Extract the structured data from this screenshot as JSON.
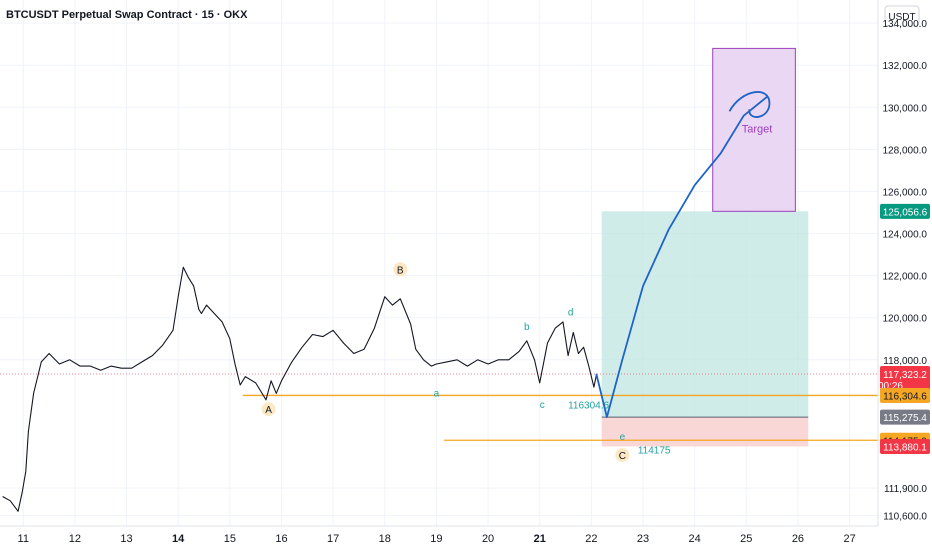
{
  "header": {
    "title": "BTCUSDT Perpetual Swap Contract · 15 · OKX",
    "currency": "USDT"
  },
  "colors": {
    "price_line": "#131722",
    "level_line": "#f5a623",
    "projection": "#1e63c8",
    "profit_zone": "#bfe6e1",
    "loss_zone": "#f9d0d0",
    "target_box": "#ead7f3",
    "target_border": "#9c3fbd",
    "wave_labels": "#22a39f",
    "wave_major_bg": "#fde8c4"
  },
  "chart_data": {
    "type": "line",
    "series": [
      {
        "x": [
          10.6,
          10.75,
          10.9,
          10.98,
          11.05,
          11.1,
          11.2,
          11.35,
          11.5,
          11.7,
          11.9,
          12.1,
          12.3,
          12.5,
          12.7,
          12.9,
          13.1,
          13.3,
          13.5,
          13.7,
          13.9,
          14.0,
          14.1,
          14.2,
          14.3,
          14.4,
          14.45,
          14.55,
          14.7,
          14.85,
          15.0,
          15.1,
          15.2,
          15.3,
          15.5,
          15.7,
          15.8,
          15.9,
          16.0,
          16.2,
          16.4,
          16.6,
          16.8,
          17.0,
          17.2,
          17.4,
          17.6,
          17.8,
          18.0,
          18.15,
          18.3,
          18.5,
          18.6,
          18.75,
          18.9,
          19.0,
          19.2,
          19.4,
          19.6,
          19.8,
          20.0,
          20.2,
          20.4,
          20.6,
          20.75,
          20.9,
          21.0,
          21.15,
          21.3,
          21.45,
          21.55,
          21.65,
          21.75,
          21.85,
          21.95,
          22.05,
          22.1
        ],
        "y": [
          111500,
          111300,
          110800,
          111700,
          112700,
          114600,
          116400,
          117900,
          118300,
          117800,
          118000,
          117700,
          117700,
          117500,
          117700,
          117600,
          117600,
          117900,
          118200,
          118700,
          119400,
          121000,
          122400,
          121900,
          121500,
          120400,
          120200,
          120600,
          120200,
          119800,
          119000,
          117800,
          116800,
          117200,
          116900,
          116100,
          117000,
          116400,
          117000,
          117900,
          118600,
          119200,
          119100,
          119400,
          118800,
          118300,
          118500,
          119500,
          121000,
          120600,
          120900,
          119700,
          118500,
          118000,
          117700,
          117800,
          117900,
          118000,
          117700,
          118000,
          117800,
          118000,
          118000,
          118400,
          118900,
          118000,
          116900,
          118800,
          119500,
          119800,
          118200,
          119300,
          118300,
          118600,
          117700,
          116700,
          117300
        ]
      }
    ],
    "projection": {
      "x": [
        22.1,
        22.3,
        22.6,
        23.0,
        23.5,
        24.0,
        24.5,
        24.95,
        25.4
      ],
      "y": [
        117300,
        115275,
        118000,
        121500,
        124200,
        126300,
        127800,
        129600,
        130500
      ]
    },
    "x_ticks": [
      {
        "v": 11,
        "label": "11",
        "bold": false
      },
      {
        "v": 12,
        "label": "12",
        "bold": false
      },
      {
        "v": 13,
        "label": "13",
        "bold": false
      },
      {
        "v": 14,
        "label": "14",
        "bold": true
      },
      {
        "v": 15,
        "label": "15",
        "bold": false
      },
      {
        "v": 16,
        "label": "16",
        "bold": false
      },
      {
        "v": 17,
        "label": "17",
        "bold": false
      },
      {
        "v": 18,
        "label": "18",
        "bold": false
      },
      {
        "v": 19,
        "label": "19",
        "bold": false
      },
      {
        "v": 20,
        "label": "20",
        "bold": false
      },
      {
        "v": 21,
        "label": "21",
        "bold": true
      },
      {
        "v": 22,
        "label": "22",
        "bold": false
      },
      {
        "v": 23,
        "label": "23",
        "bold": false
      },
      {
        "v": 24,
        "label": "24",
        "bold": false
      },
      {
        "v": 25,
        "label": "25",
        "bold": false
      },
      {
        "v": 26,
        "label": "26",
        "bold": false
      },
      {
        "v": 27,
        "label": "27",
        "bold": false
      }
    ],
    "y_ticks": [
      {
        "v": 134000,
        "label": "134,000.0"
      },
      {
        "v": 132000,
        "label": "132,000.0"
      },
      {
        "v": 130000,
        "label": "130,000.0"
      },
      {
        "v": 128000,
        "label": "128,000.0"
      },
      {
        "v": 126000,
        "label": "126,000.0"
      },
      {
        "v": 124000,
        "label": "124,000.0"
      },
      {
        "v": 122000,
        "label": "122,000.0"
      },
      {
        "v": 120000,
        "label": "120,000.0"
      },
      {
        "v": 118000,
        "label": "118,000.0"
      },
      {
        "v": 111900,
        "label": "111,900.0"
      },
      {
        "v": 110600,
        "label": "110,600.0"
      }
    ],
    "price_tags": [
      {
        "v": 125056.6,
        "label": "125,056.6",
        "bg": "#089981"
      },
      {
        "v": 117323.2,
        "label": "117,323.2",
        "sub": "00:26",
        "bg": "#f23645"
      },
      {
        "v": 116304.6,
        "label": "116,304.6",
        "bg": "#f5a623"
      },
      {
        "v": 115275.4,
        "label": "115,275.4",
        "bg": "#787b86"
      },
      {
        "v": 114175.0,
        "label": "114,175.0",
        "bg": "#f5a623"
      },
      {
        "v": 113880.1,
        "label": "113,880.1",
        "bg": "#f23645"
      }
    ],
    "levels": [
      {
        "from": 15.25,
        "v": 116304.6,
        "label": "116304.6",
        "label_x": 21.55
      },
      {
        "from": 19.15,
        "v": 114175,
        "label": "114175",
        "label_x": 22.9
      }
    ],
    "current_price": 117323.2,
    "position": {
      "x1": 22.2,
      "x2": 26.2,
      "entry": 115275.4,
      "target": 125056.6,
      "stop": 113880.1
    },
    "target_box": {
      "x1": 24.35,
      "x2": 25.95,
      "y1": 125056.6,
      "y2": 132800,
      "label": "Target"
    },
    "wave_labels": [
      {
        "text": "A",
        "x": 15.75,
        "v": 115650,
        "major": true
      },
      {
        "text": "B",
        "x": 18.3,
        "v": 122300,
        "major": true
      },
      {
        "text": "C",
        "x": 22.6,
        "v": 113470,
        "major": true
      },
      {
        "text": "a",
        "x": 19.0,
        "v": 116450,
        "major": false
      },
      {
        "text": "b",
        "x": 20.75,
        "v": 119600,
        "major": false
      },
      {
        "text": "c",
        "x": 21.05,
        "v": 115900,
        "major": false
      },
      {
        "text": "d",
        "x": 21.6,
        "v": 120300,
        "major": false
      },
      {
        "text": "e",
        "x": 22.6,
        "v": 114380,
        "major": false
      }
    ],
    "xlim": [
      10.55,
      27.55
    ],
    "ylim": [
      110100,
      135100
    ]
  }
}
